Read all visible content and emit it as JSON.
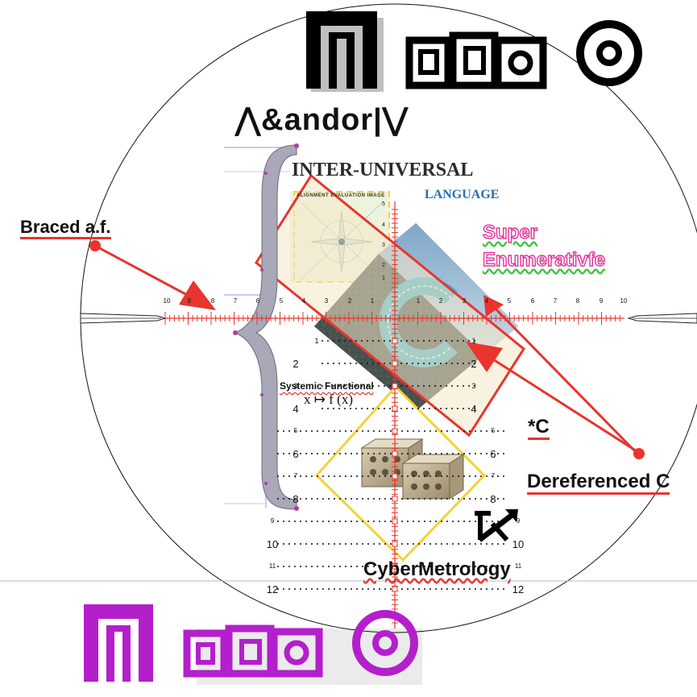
{
  "colors": {
    "accent_red": "#e8352e",
    "black": "#000000",
    "magenta": "#b41fcc",
    "pink": "#e0349a",
    "yellow": "#f5dc3a",
    "brace_gray": "#a8a8b8",
    "blue_text": "#2a6fb0"
  },
  "icons": {
    "top_logo": "bracket-squares-circle-logo",
    "bottom_logo": "bracket-squares-circle-logo",
    "cursor_glyph": "crossed-arrow-glyph"
  },
  "labels": {
    "logic": "⋀&andor|⋁",
    "inter_universal": "INTER-UNIVERSAL",
    "language": "LANGUAGE",
    "braced": "Braced a.f.",
    "super": "Super",
    "enumerative": "Enumerativfe",
    "systemic": "Systemic Functional",
    "map_formula": "x ↦ f (x)",
    "star_c": "*C",
    "dereferenced": "Dereferenced C",
    "cybermetrology": "CyberMetrology",
    "inset_caption": "ALIGNMENT EVALUATION IMAGE",
    "c_letter": "C"
  },
  "scale": {
    "horizontal_ticks": [
      "10",
      "9",
      "8",
      "7",
      "6",
      "5",
      "4",
      "3",
      "2",
      "1",
      "1",
      "2",
      "3",
      "4",
      "5",
      "6",
      "7",
      "8",
      "9",
      "10"
    ],
    "vertical_left": [
      "1",
      "2",
      "3",
      "4",
      "5",
      "6",
      "7",
      "8",
      "9",
      "10",
      "11",
      "12"
    ],
    "vertical_right": [
      "1",
      "2",
      "3",
      "4",
      "5",
      "6",
      "7",
      "8",
      "9",
      "10",
      "11",
      "12"
    ],
    "inset_ticks": [
      "5",
      "4",
      "3",
      "2",
      "1"
    ]
  }
}
